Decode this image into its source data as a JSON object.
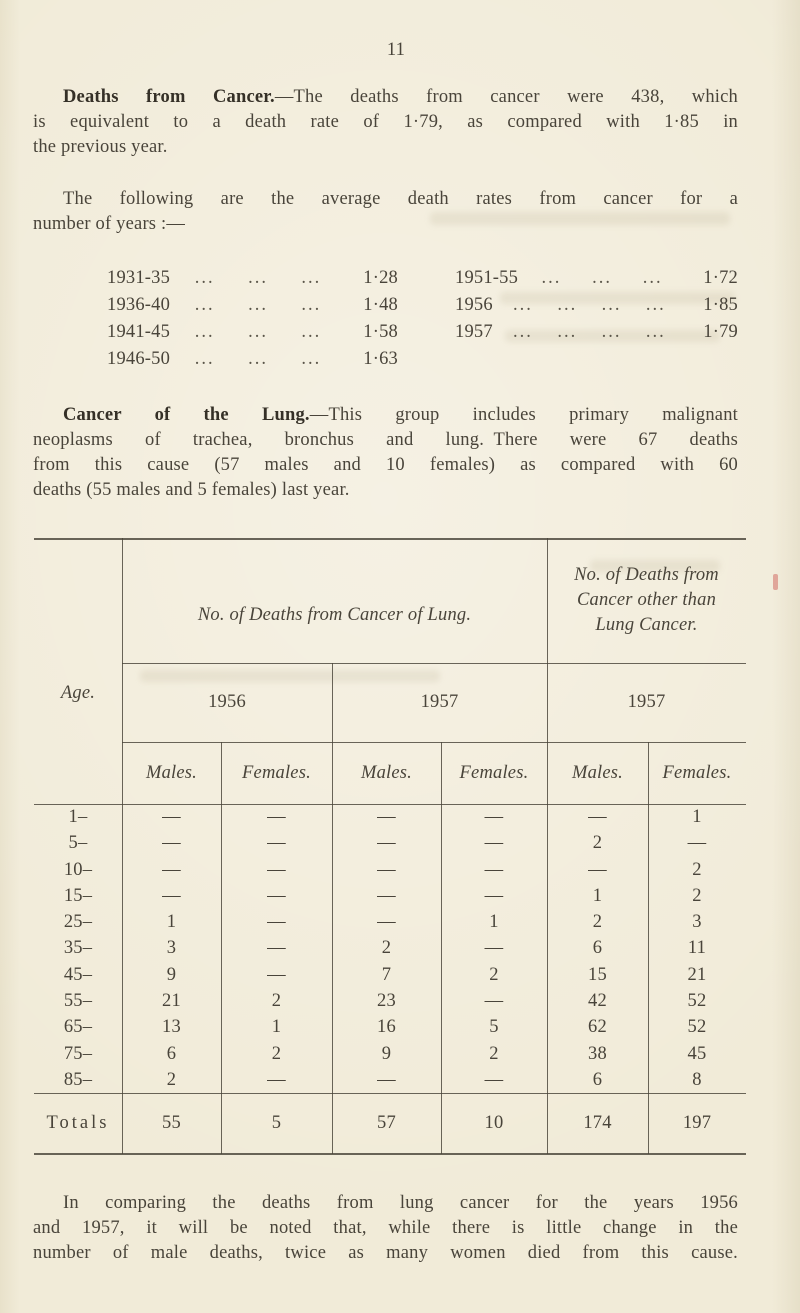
{
  "page": {
    "number": "11"
  },
  "paragraphs": {
    "cancer_deaths": {
      "lead": "Deaths from Cancer.",
      "lines": [
        "—The deaths from cancer were 438, which",
        "is equivalent to a death rate of 1·79, as compared with 1·85 in",
        "the previous year."
      ]
    },
    "intro_rates": {
      "lines": [
        "The following are the average death rates from cancer for a",
        "number of years :—"
      ]
    },
    "lung_cancer": {
      "lead": "Cancer of the Lung.",
      "lines": [
        "—This group includes primary malignant",
        "neoplasms of trachea, bronchus and lung. There were 67 deaths",
        "from this cause (57 males and 10 females) as compared with 60",
        "deaths (55 males and 5 females) last year."
      ]
    },
    "comparison": {
      "lines": [
        "In comparing the deaths from lung cancer for the years 1956",
        "and 1957, it will be noted that, while there is little change in the",
        "number of male deaths, twice as many women died from this cause."
      ]
    }
  },
  "rates": {
    "left": [
      {
        "label": "1931-35",
        "dots": 3,
        "value": "1·28"
      },
      {
        "label": "1936-40",
        "dots": 3,
        "value": "1·48"
      },
      {
        "label": "1941-45",
        "dots": 3,
        "value": "1·58"
      },
      {
        "label": "1946-50",
        "dots": 3,
        "value": "1·63"
      }
    ],
    "right": [
      {
        "label": "1951-55",
        "dots": 3,
        "value": "1·72"
      },
      {
        "label": "1956",
        "dots": 4,
        "value": "1·85"
      },
      {
        "label": "1957",
        "dots": 4,
        "value": "1·79"
      }
    ]
  },
  "table": {
    "age_header": "Age.",
    "group_lung": "No. of Deaths from Cancer of Lung.",
    "group_other_lines": [
      "No. of Deaths from",
      "Cancer other than",
      "Lung Cancer."
    ],
    "years": [
      "1956",
      "1957",
      "1957"
    ],
    "sex_headers": [
      "Males.",
      "Females.",
      "Males.",
      "Females.",
      "Males.",
      "Females."
    ],
    "rows": [
      {
        "age": "1–",
        "values": [
          "—",
          "—",
          "—",
          "—",
          "—",
          "1"
        ]
      },
      {
        "age": "5–",
        "values": [
          "—",
          "—",
          "—",
          "—",
          "2",
          "—"
        ]
      },
      {
        "age": "10–",
        "values": [
          "—",
          "—",
          "—",
          "—",
          "—",
          "2"
        ]
      },
      {
        "age": "15–",
        "values": [
          "—",
          "—",
          "—",
          "—",
          "1",
          "2"
        ]
      },
      {
        "age": "25–",
        "values": [
          "1",
          "—",
          "—",
          "1",
          "2",
          "3"
        ]
      },
      {
        "age": "35–",
        "values": [
          "3",
          "—",
          "2",
          "—",
          "6",
          "11"
        ]
      },
      {
        "age": "45–",
        "values": [
          "9",
          "—",
          "7",
          "2",
          "15",
          "21"
        ]
      },
      {
        "age": "55–",
        "values": [
          "21",
          "2",
          "23",
          "—",
          "42",
          "52"
        ]
      },
      {
        "age": "65–",
        "values": [
          "13",
          "1",
          "16",
          "5",
          "62",
          "52"
        ]
      },
      {
        "age": "75–",
        "values": [
          "6",
          "2",
          "9",
          "2",
          "38",
          "45"
        ]
      },
      {
        "age": "85–",
        "values": [
          "2",
          "—",
          "—",
          "—",
          "6",
          "8"
        ]
      }
    ],
    "totals_label": "Totals",
    "totals": [
      "55",
      "5",
      "57",
      "10",
      "174",
      "197"
    ]
  },
  "colors": {
    "paper": "#f1ebd8",
    "ink": "#49443a"
  }
}
